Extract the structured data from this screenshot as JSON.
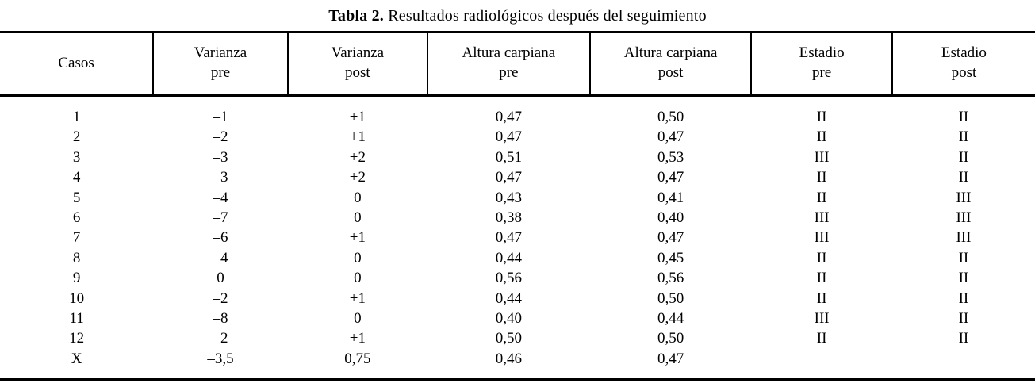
{
  "title": {
    "prefix": "Tabla 2.",
    "text": " Resultados radiológicos después del seguimiento"
  },
  "table": {
    "headers": [
      {
        "line1": "Casos",
        "line2": ""
      },
      {
        "line1": "Varianza",
        "line2": "pre"
      },
      {
        "line1": "Varianza",
        "line2": "post"
      },
      {
        "line1": "Altura carpiana",
        "line2": "pre"
      },
      {
        "line1": "Altura carpiana",
        "line2": "post"
      },
      {
        "line1": "Estadio",
        "line2": "pre"
      },
      {
        "line1": "Estadio",
        "line2": "post"
      }
    ],
    "rows": [
      [
        "1",
        "–1",
        "+1",
        "0,47",
        "0,50",
        "II",
        "II"
      ],
      [
        "2",
        "–2",
        "+1",
        "0,47",
        "0,47",
        "II",
        "II"
      ],
      [
        "3",
        "–3",
        "+2",
        "0,51",
        "0,53",
        "III",
        "II"
      ],
      [
        "4",
        "–3",
        "+2",
        "0,47",
        "0,47",
        "II",
        "II"
      ],
      [
        "5",
        "–4",
        "0",
        "0,43",
        "0,41",
        "II",
        "III"
      ],
      [
        "6",
        "–7",
        "0",
        "0,38",
        "0,40",
        "III",
        "III"
      ],
      [
        "7",
        "–6",
        "+1",
        "0,47",
        "0,47",
        "III",
        "III"
      ],
      [
        "8",
        "–4",
        "0",
        "0,44",
        "0,45",
        "II",
        "II"
      ],
      [
        "9",
        "0",
        "0",
        "0,56",
        "0,56",
        "II",
        "II"
      ],
      [
        "10",
        "–2",
        "+1",
        "0,44",
        "0,50",
        "II",
        "II"
      ],
      [
        "11",
        "–8",
        "0",
        "0,40",
        "0,44",
        "III",
        "II"
      ],
      [
        "12",
        "–2",
        "+1",
        "0,50",
        "0,50",
        "II",
        "II"
      ],
      [
        "X",
        "–3,5",
        "0,75",
        "0,46",
        "0,47",
        "",
        ""
      ]
    ]
  },
  "colors": {
    "rule": "#000000",
    "background": "#ffffff",
    "text": "#000000"
  }
}
